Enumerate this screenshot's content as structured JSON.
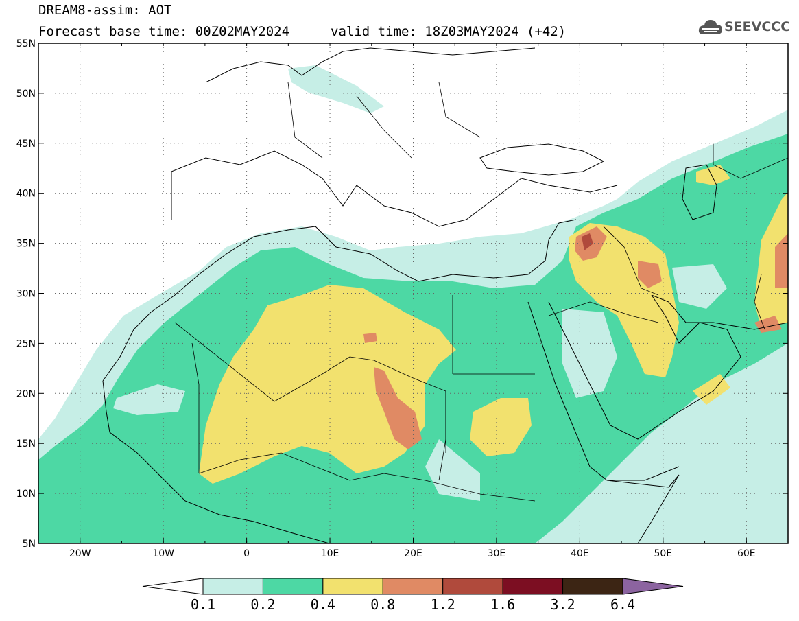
{
  "header": {
    "title": "DREAM8-assim: AOT",
    "base_time": "Forecast base time: 00Z02MAY2024",
    "valid_time": "valid time: 18Z03MAY2024 (+42)",
    "logo_text": "SEEVCCC",
    "logo_icon": "cloud-icon"
  },
  "map": {
    "lon_range": [
      -25,
      65
    ],
    "lat_range": [
      5,
      55
    ],
    "x_ticks": [
      "20W",
      "10W",
      "0",
      "10E",
      "20E",
      "30E",
      "40E",
      "50E",
      "60E"
    ],
    "y_ticks": [
      "55N",
      "50N",
      "45N",
      "40N",
      "35N",
      "30N",
      "25N",
      "20N",
      "15N",
      "10N",
      "5N"
    ],
    "grid": "dotted",
    "field": "Aerosol Optical Thickness"
  },
  "colorbar": {
    "levels": [
      "0.1",
      "0.2",
      "0.4",
      "0.8",
      "1.2",
      "1.6",
      "3.2",
      "6.4"
    ],
    "colors": [
      "#c6eee6",
      "#4dd8a4",
      "#f2e16e",
      "#e08a64",
      "#b04a3c",
      "#7c0e22",
      "#3c2514",
      "#8c64a0"
    ],
    "background": "#ffffff"
  }
}
